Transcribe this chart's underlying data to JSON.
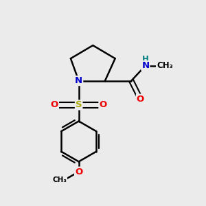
{
  "bg_color": "#ebebeb",
  "atom_colors": {
    "C": "#000000",
    "N": "#0000cc",
    "O": "#ee0000",
    "S": "#aaaa00",
    "H": "#008080"
  },
  "bond_color": "#000000",
  "figsize": [
    3.0,
    3.0
  ],
  "dpi": 100
}
